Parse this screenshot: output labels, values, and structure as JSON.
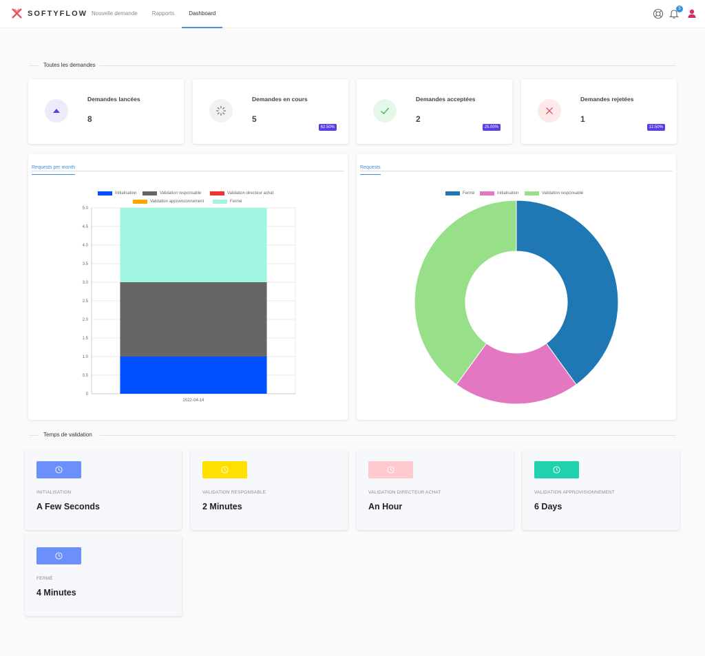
{
  "header": {
    "brand": "SOFTYFLOW",
    "nav": [
      {
        "label": "Nouvelle demande"
      },
      {
        "label": "Rapports"
      },
      {
        "label": "Dashboard"
      }
    ],
    "notification_count": "5",
    "icons": [
      "support-icon",
      "bell-icon",
      "user-icon"
    ],
    "accent": "#4a90d9"
  },
  "requests_section": {
    "title": "Toutes les demandes"
  },
  "stats": [
    {
      "label": "Demandes lancées",
      "value": "8",
      "badge": "",
      "icon": "triangle-up-icon",
      "icon_bg": "#ecebfb",
      "icon_color": "#5a3fd6"
    },
    {
      "label": "Demandes en cours",
      "value": "5",
      "badge": "62.50%",
      "icon": "spinner-icon",
      "icon_bg": "#f2f2f2",
      "icon_color": "#777777"
    },
    {
      "label": "Demandes acceptées",
      "value": "2",
      "badge": "25.00%",
      "icon": "check-icon",
      "icon_bg": "#e4f8ea",
      "icon_color": "#3fb85f"
    },
    {
      "label": "Demandes rejetées",
      "value": "1",
      "badge": "12.50%",
      "icon": "cross-icon",
      "icon_bg": "#fde9ea",
      "icon_color": "#e0555e"
    }
  ],
  "bar_panel": {
    "tab": "Requests per month"
  },
  "pie_panel": {
    "tab": "Requests"
  },
  "chart_data": [
    {
      "type": "bar",
      "stacked": true,
      "categories": [
        "2022-04-14"
      ],
      "series": [
        {
          "name": "Initialisation",
          "values": [
            1
          ],
          "color": "#0050ff"
        },
        {
          "name": "Validation responsable",
          "values": [
            2
          ],
          "color": "#666666"
        },
        {
          "name": "Validation directeur achat",
          "values": [
            0
          ],
          "color": "#ee3333"
        },
        {
          "name": "Validation approvisionnement",
          "values": [
            0
          ],
          "color": "#ffa500"
        },
        {
          "name": "Fermé",
          "values": [
            2
          ],
          "color": "#a3f5e3"
        }
      ],
      "y_ticks": [
        "5.0",
        "4.5",
        "4.0",
        "3.5",
        "3.0",
        "2.5",
        "2.0",
        "1.5",
        "1.0",
        "0.5",
        "0"
      ],
      "ylim": [
        0,
        5
      ],
      "grid": true,
      "legend": "top"
    },
    {
      "type": "pie",
      "donut": true,
      "slices": [
        {
          "name": "Fermé",
          "value": 2,
          "color": "#1f77b4"
        },
        {
          "name": "Initialisation",
          "value": 1,
          "color": "#e377c2"
        },
        {
          "name": "Validation responsable",
          "value": 2,
          "color": "#98df8a"
        }
      ],
      "legend": "top"
    }
  ],
  "validation_section": {
    "title": "Temps de validation"
  },
  "validation_times": [
    {
      "label": "INITIALISATION",
      "value": "A Few Seconds",
      "color": "#6b8ffb",
      "icon": "clock-icon"
    },
    {
      "label": "VALIDATION RESPONSABLE",
      "value": "2 Minutes",
      "color": "#ffe000",
      "icon": "clock-icon"
    },
    {
      "label": "VALIDATION DIRECTEUR ACHAT",
      "value": "An Hour",
      "color": "#ffc9d0",
      "icon": "clock-icon"
    },
    {
      "label": "VALIDATION APPROVISIONNEMENT",
      "value": "6 Days",
      "color": "#1fd1ad",
      "icon": "clock-icon"
    },
    {
      "label": "FERMÉ",
      "value": "4 Minutes",
      "color": "#6b8ffb",
      "icon": "clock-icon"
    }
  ]
}
